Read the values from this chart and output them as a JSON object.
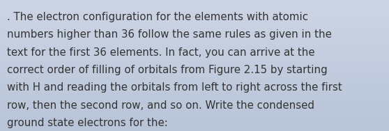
{
  "text_lines": [
    ". The electron configuration for the elements with atomic",
    "numbers higher than 36 follow the same rules as given in the",
    "text for the first 36 elements. In fact, you can arrive at the",
    "correct order of filling of orbitals from Figure 2.15 by starting",
    "with H and reading the orbitals from left to right across the first",
    "row, then the second row, and so on. Write the condensed",
    "ground state electrons for the:"
  ],
  "background_color_top": "#cdd5e5",
  "background_color_bottom": "#b8c4d8",
  "text_color": "#333333",
  "font_size": 10.8,
  "fig_width": 5.58,
  "fig_height": 1.88,
  "dpi": 100
}
